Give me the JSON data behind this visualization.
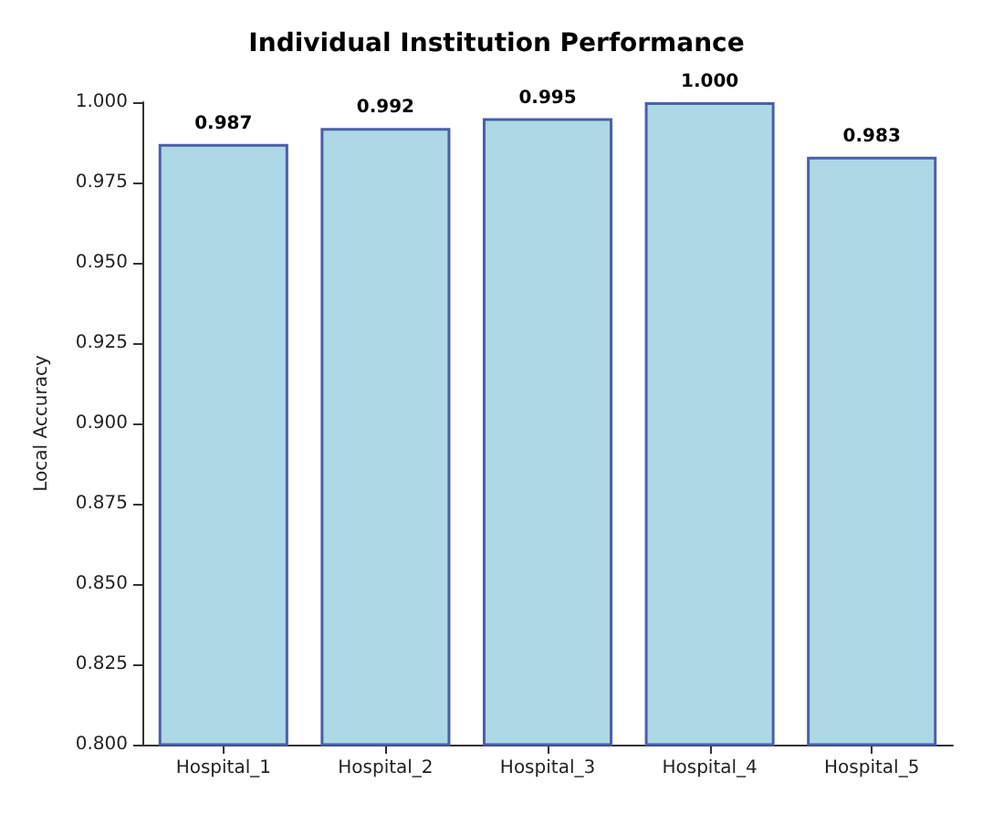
{
  "chart_data": {
    "type": "bar",
    "title": "Individual Institution Performance",
    "ylabel": "Local Accuracy",
    "categories": [
      "Hospital_1",
      "Hospital_2",
      "Hospital_3",
      "Hospital_4",
      "Hospital_5"
    ],
    "values": [
      0.987,
      0.992,
      0.995,
      1.0,
      0.983
    ],
    "value_labels": [
      "0.987",
      "0.992",
      "0.995",
      "1.000",
      "0.983"
    ],
    "color": "#add8e6",
    "ylim": [
      0.8,
      1.0
    ],
    "yticks": [
      {
        "value": 0.8,
        "label": "0.800"
      },
      0.825,
      {
        "value": 0.85,
        "label": "0.850"
      },
      0.875,
      {
        "value": 0.9,
        "label": "0.900"
      },
      0.925,
      {
        "value": 0.95,
        "label": "0.950"
      },
      0.975,
      {
        "value": 1.0,
        "label": "1.000"
      }
    ],
    "grid": false
  }
}
